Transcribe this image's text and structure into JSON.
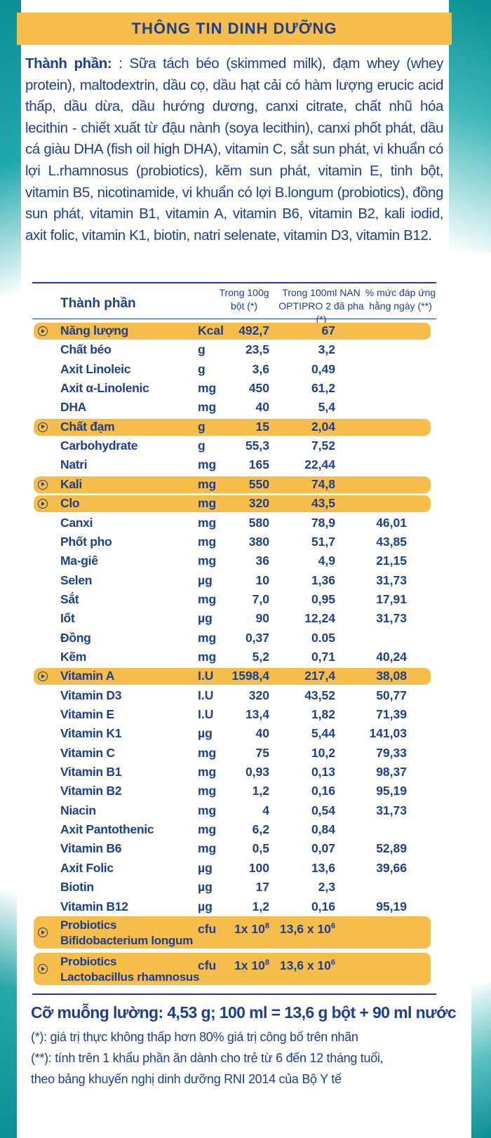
{
  "title": "THÔNG TIN DINH DƯỠNG",
  "ingredients": {
    "label": "Thành phần:",
    "text": " : Sữa tách béo (skimmed milk), đạm whey (whey protein), maltodextrin, dầu cọ, dầu hạt cải có hàm lượng erucic acid thấp, dầu dừa, dầu hướng dương, canxi citrate, chất nhũ hóa lecithin - chiết xuất từ đậu nành (soya lecithin), canxi phốt phát, dầu cá giàu DHA (fish oil high DHA), vitamin C, sắt sun phát, vi khuẩn có lợi L.rhamnosus (probiotics), kẽm sun phát, vitamin E, tinh bột, vitamin B5, nicotinamide, vi khuẩn có lợi B.longum (probiotics), đồng sun phát, vitamin B1, vitamin A, vitamin B6, vitamin B2, kali iodid, axit folic, vitamin K1, biotin, natri selenate, vitamin D3, vitamin B12."
  },
  "table": {
    "header": {
      "name": "Thành phần",
      "col1_l1": "Trong 100g",
      "col1_l2": "bột (*)",
      "col2_l1": "Trong 100ml NAN",
      "col2_l2": "OPTIPRO 2 đã pha (*)",
      "col3_l1": "% mức đáp ứng",
      "col3_l2": "hằng ngày (**)"
    },
    "rows": [
      {
        "name": "Năng lượng",
        "unit": "Kcal",
        "v1": "492,7",
        "v2": "67",
        "v3": "",
        "highlight": true
      },
      {
        "name": "Chất béo",
        "unit": "g",
        "v1": "23,5",
        "v2": "3,2",
        "v3": ""
      },
      {
        "name": "Axit Linoleic",
        "unit": "g",
        "v1": "3,6",
        "v2": "0,49",
        "v3": ""
      },
      {
        "name": "Axit α-Linolenic",
        "unit": "mg",
        "v1": "450",
        "v2": "61,2",
        "v3": ""
      },
      {
        "name": "DHA",
        "unit": "mg",
        "v1": "40",
        "v2": "5,4",
        "v3": ""
      },
      {
        "name": "Chất đạm",
        "unit": "g",
        "v1": "15",
        "v2": "2,04",
        "v3": "",
        "highlight": true
      },
      {
        "name": "Carbohydrate",
        "unit": "g",
        "v1": "55,3",
        "v2": "7,52",
        "v3": ""
      },
      {
        "name": "Natri",
        "unit": "mg",
        "v1": "165",
        "v2": "22,44",
        "v3": ""
      },
      {
        "name": "Kali",
        "unit": "mg",
        "v1": "550",
        "v2": "74,8",
        "v3": "",
        "highlight": true
      },
      {
        "name": "Clo",
        "unit": "mg",
        "v1": "320",
        "v2": "43,5",
        "v3": "",
        "highlight": true
      },
      {
        "name": "Canxi",
        "unit": "mg",
        "v1": "580",
        "v2": "78,9",
        "v3": "46,01"
      },
      {
        "name": "Phốt pho",
        "unit": "mg",
        "v1": "380",
        "v2": "51,7",
        "v3": "43,85"
      },
      {
        "name": "Ma-giê",
        "unit": "mg",
        "v1": "36",
        "v2": "4,9",
        "v3": "21,15"
      },
      {
        "name": "Selen",
        "unit": "µg",
        "v1": "10",
        "v2": "1,36",
        "v3": "31,73"
      },
      {
        "name": "Sắt",
        "unit": "mg",
        "v1": "7,0",
        "v2": "0,95",
        "v3": "17,91"
      },
      {
        "name": "Iốt",
        "unit": "µg",
        "v1": "90",
        "v2": "12,24",
        "v3": "31,73"
      },
      {
        "name": "Đồng",
        "unit": "mg",
        "v1": "0,37",
        "v2": "0.05",
        "v3": ""
      },
      {
        "name": "Kẽm",
        "unit": "mg",
        "v1": "5,2",
        "v2": "0,71",
        "v3": "40,24"
      },
      {
        "name": "Vitamin A",
        "unit": "I.U",
        "v1": "1598,4",
        "v2": "217,4",
        "v3": "38,08",
        "highlight": true
      },
      {
        "name": "Vitamin D3",
        "unit": "I.U",
        "v1": "320",
        "v2": "43,52",
        "v3": "50,77"
      },
      {
        "name": "Vitamin E",
        "unit": "I.U",
        "v1": "13,4",
        "v2": "1,82",
        "v3": "71,39"
      },
      {
        "name": "Vitamin K1",
        "unit": "µg",
        "v1": "40",
        "v2": "5,44",
        "v3": "141,03"
      },
      {
        "name": "Vitamin C",
        "unit": "mg",
        "v1": "75",
        "v2": "10,2",
        "v3": "79,33"
      },
      {
        "name": "Vitamin B1",
        "unit": "mg",
        "v1": "0,93",
        "v2": "0,13",
        "v3": "98,37"
      },
      {
        "name": "Vitamin B2",
        "unit": "mg",
        "v1": "1,2",
        "v2": "0,16",
        "v3": "95,19"
      },
      {
        "name": "Niacin",
        "unit": "mg",
        "v1": "4",
        "v2": "0,54",
        "v3": "31,73"
      },
      {
        "name": "Axit Pantothenic",
        "unit": "mg",
        "v1": "6,2",
        "v2": "0,84",
        "v3": ""
      },
      {
        "name": "Vitamin B6",
        "unit": "mg",
        "v1": "0,5",
        "v2": "0,07",
        "v3": "52,89"
      },
      {
        "name": "Axit Folic",
        "unit": "µg",
        "v1": "100",
        "v2": "13,6",
        "v3": "39,66"
      },
      {
        "name": "Biotin",
        "unit": "µg",
        "v1": "17",
        "v2": "2,3",
        "v3": ""
      },
      {
        "name": "Vitamin B12",
        "unit": "µg",
        "v1": "1,2",
        "v2": "0,16",
        "v3": "95,19"
      }
    ],
    "probiotics": [
      {
        "name_l1": "Probiotics",
        "name_l2": "Bifidobacterium longum",
        "unit": "cfu",
        "v1_base": "1x 10",
        "v1_exp": "8",
        "v2_base": "13,6 x 10",
        "v2_exp": "6"
      },
      {
        "name_l1": "Probiotics",
        "name_l2": "Lactobacillus rhamnosus",
        "unit": "cfu",
        "v1_base": "1x 10",
        "v1_exp": "8",
        "v2_base": "13,6 x 10",
        "v2_exp": "6"
      }
    ]
  },
  "footer": {
    "serving": "Cỡ muỗng lường: 4,53 g; 100 ml = 13,6 g bột + 90 ml nước",
    "note1": "(*): giá trị thực không thấp hơn 80% giá trị công bố trên nhãn",
    "note2": "(**): tính trên 1 khẩu phần ăn dành cho trẻ từ 6 đến 12 tháng tuổi,",
    "note3": "theo bảng khuyến nghị dinh dưỡng RNI 2014 của Bộ Y tế"
  },
  "colors": {
    "accent": "#f7bd4a",
    "text": "#1c3f8f",
    "teal": "#0a8f96"
  }
}
